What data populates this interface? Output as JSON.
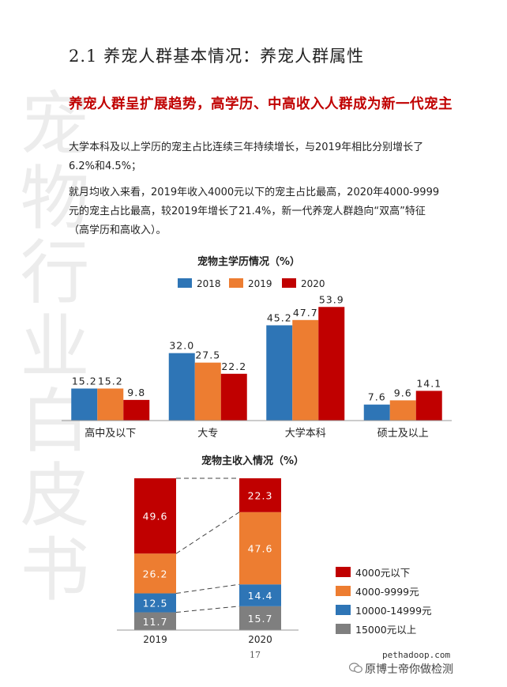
{
  "watermark": "宠物行业白皮书",
  "section_title": "2.1 养宠人群基本情况：养宠人群属性",
  "headline": "养宠人群呈扩展趋势，高学历、中高收入人群成为新一代宠主",
  "paragraph1": "大学本科及以上学历的宠主占比连续三年持续增长，与2019年相比分别增长了6.2%和4.5%；",
  "paragraph2": "就月均收入来看，2019年收入4000元以下的宠主占比最高，2020年4000-9999元的宠主占比最高，较2019年增长了21.4%，新一代养宠人群趋向“双高”特征（高学历和高收入）。",
  "page_number": "17",
  "footer_site": "pethadoop.com",
  "footer_account": "原博士帝你做检测",
  "colors": {
    "c2018": "#2e75b6",
    "c2019": "#ed7d31",
    "c2020": "#c00000",
    "c15000": "#7f7f7f",
    "headline": "#c00000"
  },
  "chart_data": [
    {
      "type": "bar",
      "title": "宠物主学历情况（%）",
      "categories": [
        "高中及以下",
        "大专",
        "大学本科",
        "硕士及以上"
      ],
      "series": [
        {
          "name": "2018",
          "values": [
            15.2,
            32.0,
            45.2,
            7.6
          ]
        },
        {
          "name": "2019",
          "values": [
            15.2,
            27.5,
            47.7,
            9.6
          ]
        },
        {
          "name": "2020",
          "values": [
            9.8,
            22.2,
            53.9,
            14.1
          ]
        }
      ],
      "value_labels": {
        "2018": [
          "15.2",
          "32.0",
          "45.2",
          "7.6"
        ],
        "2019": [
          "15.2",
          "27.5",
          "47.7",
          "9.6"
        ],
        "2020": [
          "9.8",
          "22.2",
          "53.9",
          "14.1"
        ]
      },
      "ylim": [
        0,
        60
      ],
      "legend": "top",
      "grid": false
    },
    {
      "type": "bar",
      "stacked": true,
      "title": "宠物主收入情况（%）",
      "categories": [
        "2019",
        "2020"
      ],
      "series": [
        {
          "name": "15000元以上",
          "values": [
            11.7,
            15.7
          ],
          "labels": [
            "11.7",
            "15.7"
          ]
        },
        {
          "name": "10000-14999元",
          "values": [
            12.5,
            14.4
          ],
          "labels": [
            "12.5",
            "14.4"
          ]
        },
        {
          "name": "4000-9999元",
          "values": [
            26.2,
            47.6
          ],
          "labels": [
            "26.2",
            "47.6"
          ]
        },
        {
          "name": "4000元以下",
          "values": [
            49.6,
            22.3
          ],
          "labels": [
            "49.6",
            "22.3"
          ]
        }
      ],
      "legend_order": [
        "4000元以下",
        "4000-9999元",
        "10000-14999元",
        "15000元以上"
      ],
      "ylim": [
        0,
        100
      ],
      "legend": "right",
      "grid": false
    }
  ]
}
